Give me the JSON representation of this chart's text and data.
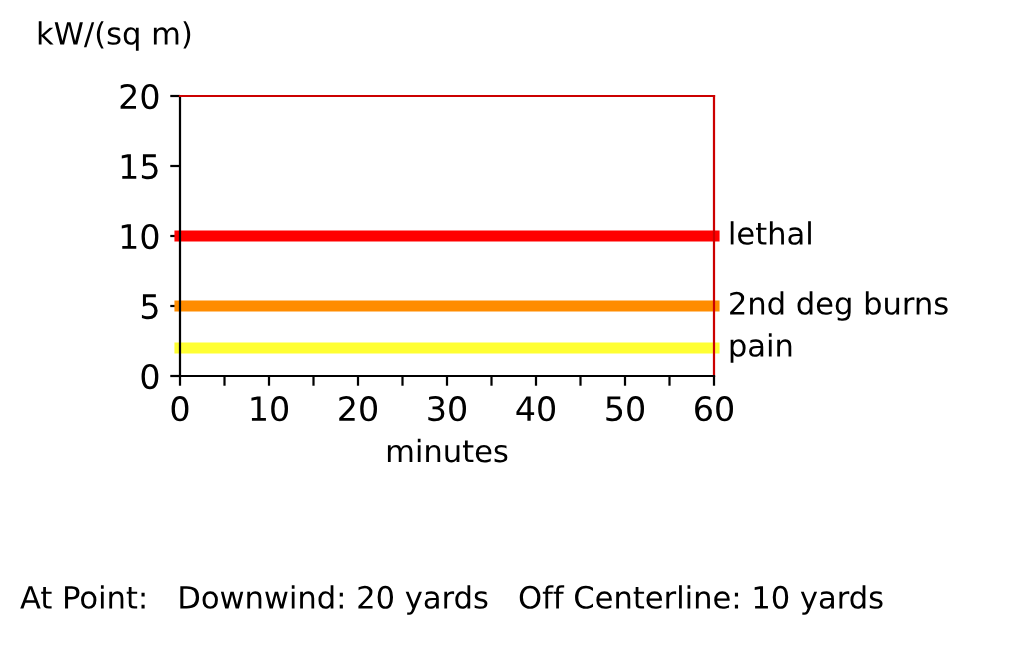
{
  "chart_data": {
    "type": "line",
    "ylabel": "kW/(sq m)",
    "xlabel": "minutes",
    "x": [
      0,
      60
    ],
    "series": [
      {
        "name": "lethal",
        "color": "#ff0000",
        "values": [
          10,
          10
        ]
      },
      {
        "name": "2nd deg burns",
        "color": "#ff8c00",
        "values": [
          5,
          5
        ]
      },
      {
        "name": "pain",
        "color": "#ffff33",
        "values": [
          2,
          2
        ]
      }
    ],
    "xlim": [
      0,
      60
    ],
    "ylim": [
      0,
      20
    ],
    "xticks": [
      0,
      {
        "value": 5,
        "label": null
      },
      10,
      {
        "value": 15,
        "label": null
      },
      20,
      {
        "value": 25,
        "label": null
      },
      30,
      {
        "value": 35,
        "label": null
      },
      40,
      {
        "value": 45,
        "label": null
      },
      50,
      {
        "value": 55,
        "label": null
      },
      60
    ],
    "yticks": [
      0,
      5,
      10,
      15,
      20
    ],
    "grid": false,
    "legend": false,
    "marker": "none",
    "line_style": "solid",
    "annotations": [
      "At Point:   Downwind: 20 yards   Off Centerline: 10 yards"
    ]
  }
}
